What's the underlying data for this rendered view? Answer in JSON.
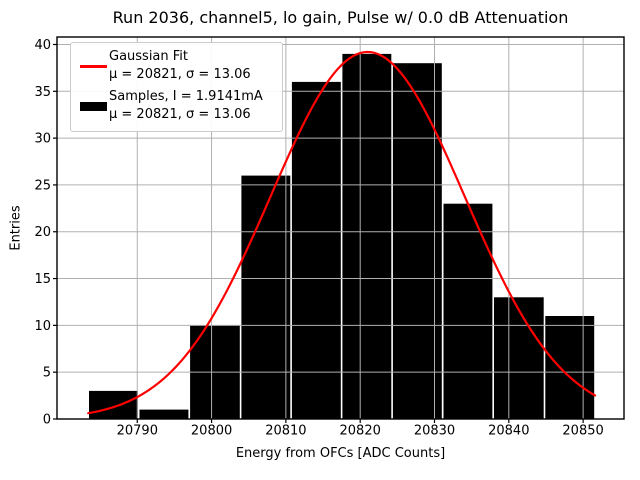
{
  "figure": {
    "title": "Run 2036, channel5, lo gain, Pulse w/ 0.0 dB Attenuation",
    "xlabel": "Energy from OFCs [ADC Counts]",
    "ylabel": "Entries"
  },
  "legend": {
    "entries": [
      {
        "swatch": "red-line",
        "label": "Gaussian Fit",
        "sublabel": "μ = 20821, σ = 13.06"
      },
      {
        "swatch": "black-bar",
        "label": "Samples, I = 1.9141mA",
        "sublabel": "μ = 20821, σ = 13.06"
      }
    ]
  },
  "chart_data": {
    "type": "bar",
    "subtype": "histogram-with-gaussian-fit",
    "title": "Run 2036, channel5, lo gain, Pulse w/ 0.0 dB Attenuation",
    "xlabel": "Energy from OFCs [ADC Counts]",
    "ylabel": "Entries",
    "bin_edges": [
      20783.4,
      20790.2,
      20797.0,
      20803.9,
      20810.7,
      20817.5,
      20824.3,
      20831.1,
      20837.9,
      20844.8,
      20851.6
    ],
    "counts": [
      3,
      1,
      10,
      26,
      36,
      39,
      38,
      23,
      13,
      11
    ],
    "total_entries": 200,
    "gaussian_fit": {
      "amplitude": 39.2,
      "mu": 20821,
      "sigma": 13.06,
      "x_start": 20783.4,
      "x_end": 20851.6
    },
    "x_ticks": [
      20790,
      20800,
      20810,
      20820,
      20830,
      20840,
      20850
    ],
    "y_ticks": [
      0,
      5,
      10,
      15,
      20,
      25,
      30,
      35,
      40
    ],
    "xlim": [
      20779.2,
      20855.5
    ],
    "ylim": [
      0,
      40.8
    ],
    "grid": true,
    "legend_position": "upper left",
    "colors": {
      "bar": "#000000",
      "bar_gap": "#ffffff",
      "fit_line": "#ff0000",
      "grid": "#b0b0b0",
      "spine": "#000000",
      "text": "#000000",
      "legend_border": "#cbcbcb"
    }
  }
}
